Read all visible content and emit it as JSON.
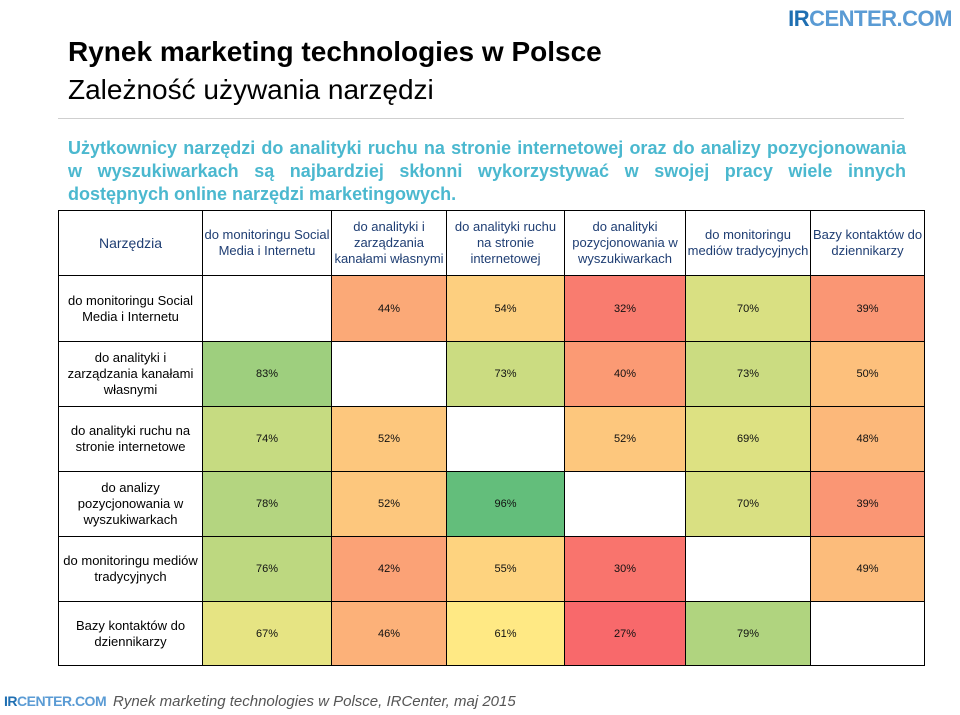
{
  "logo": {
    "ir": "IR",
    "rest": "CENTER.COM"
  },
  "header": {
    "title": "Rynek marketing technologies w Polsce",
    "subtitle": "Zależność używania narzędzi"
  },
  "lead": "Użytkownicy narzędzi do analityki ruchu na stronie internetowej oraz do analizy pozycjonowania w wyszukiwarkach są najbardziej skłonni wykorzystywać w swojej pracy wiele innych dostępnych online narzędzi marketingowych.",
  "table": {
    "corner": "Narzędzia",
    "columns": [
      "do monitoringu Social Media i Internetu",
      "do analityki i zarządzania kanałami własnymi",
      "do analityki ruchu na stronie internetowej",
      "do analityki pozycjonowania w wyszukiwarkach",
      "do monitoringu mediów tradycyjnych",
      "Bazy kontaktów do dziennikarzy"
    ],
    "rows": [
      {
        "label": "do monitoringu Social Media i Internetu",
        "cells": [
          "",
          "44%",
          "54%",
          "32%",
          "70%",
          "39%"
        ]
      },
      {
        "label": "do analityki i zarządzania kanałami własnymi",
        "cells": [
          "83%",
          "",
          "73%",
          "40%",
          "73%",
          "50%"
        ]
      },
      {
        "label": "do analityki ruchu na stronie internetowe",
        "cells": [
          "74%",
          "52%",
          "",
          "52%",
          "69%",
          "48%"
        ]
      },
      {
        "label": "do analizy pozycjonowania w wyszukiwarkach",
        "cells": [
          "78%",
          "52%",
          "96%",
          "",
          "70%",
          "39%"
        ]
      },
      {
        "label": "do monitoringu mediów tradycyjnych",
        "cells": [
          "76%",
          "42%",
          "55%",
          "30%",
          "",
          "49%"
        ]
      },
      {
        "label": "Bazy kontaktów do dziennikarzy",
        "cells": [
          "67%",
          "46%",
          "61%",
          "27%",
          "79%",
          ""
        ]
      }
    ]
  },
  "colors": {
    "accent_text": "#4bb8cf",
    "header_text": "#1f3e73",
    "scale_low": "#f8696b",
    "scale_mid": "#ffeb84",
    "scale_high": "#63be7b"
  },
  "footer": "Rynek marketing technologies w Polsce, IRCenter, maj 2015"
}
